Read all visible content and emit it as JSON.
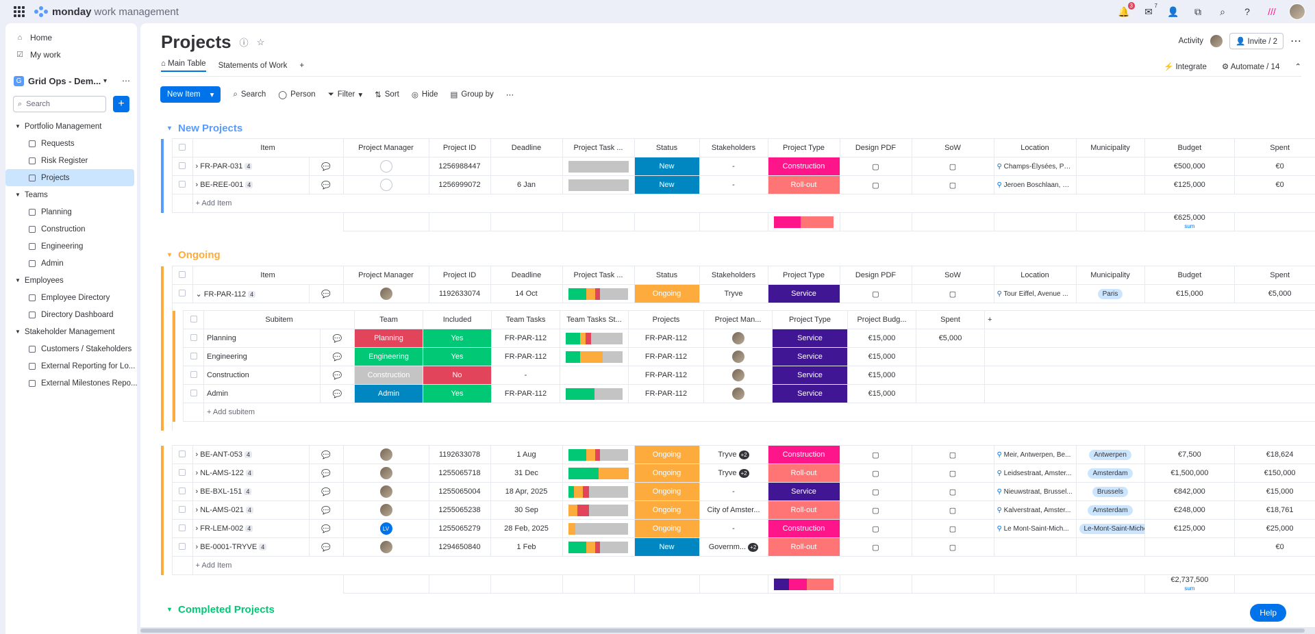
{
  "app": {
    "brand": "monday",
    "brand_rest": "work management",
    "notif_count": "3",
    "inbox_count": "7"
  },
  "sidebar": {
    "home": "Home",
    "mywork": "My work",
    "workspace": "Grid Ops - Dem...",
    "ws_letter": "G",
    "search": "Search",
    "folders": [
      {
        "label": "Portfolio Management",
        "boards": [
          "Requests",
          "Risk Register",
          "Projects"
        ]
      },
      {
        "label": "Teams",
        "boards": [
          "Planning",
          "Construction",
          "Engineering",
          "Admin"
        ]
      },
      {
        "label": "Employees",
        "boards": [
          "Employee Directory",
          "Directory Dashboard"
        ]
      },
      {
        "label": "Stakeholder Management",
        "boards": [
          "Customers / Stakeholders",
          "External Reporting for Lo...",
          "External Milestones Repo..."
        ]
      }
    ]
  },
  "board": {
    "title": "Projects",
    "tabs": [
      "Main Table",
      "Statements of Work",
      "+"
    ],
    "activity": "Activity",
    "invite": "Invite / 2",
    "integrate": "Integrate",
    "automate": "Automate / 14"
  },
  "toolbar": {
    "new_item": "New Item",
    "search": "Search",
    "person": "Person",
    "filter": "Filter",
    "sort": "Sort",
    "hide": "Hide",
    "group_by": "Group by"
  },
  "columns": [
    "Item",
    "Project Manager",
    "Project ID",
    "Deadline",
    "Project Task ...",
    "Status",
    "Stakeholders",
    "Project Type",
    "Design PDF",
    "SoW",
    "Location",
    "Municipality",
    "Budget",
    "Spent"
  ],
  "groups": {
    "new": {
      "title": "New Projects",
      "color": "#579bfc",
      "add": "+ Add Item",
      "sum": "€625,000",
      "sum_label": "sum",
      "rows": [
        {
          "item": "FR-PAR-031",
          "cnt": "4",
          "id": "1256988447",
          "deadline": "",
          "status": "New",
          "statusColor": "#0086c0",
          "stake": "-",
          "type": "Construction",
          "typeColor": "#ff158a",
          "loc": "Champs-Élysées, Pa...",
          "muni": "",
          "budget": "€500,000",
          "spent": "€0"
        },
        {
          "item": "BE-REE-001",
          "cnt": "4",
          "id": "1256999072",
          "deadline": "6 Jan",
          "status": "New",
          "statusColor": "#0086c0",
          "stake": "-",
          "type": "Roll-out",
          "typeColor": "#ff7575",
          "loc": "Jeroen Boschlaan, R...",
          "muni": "",
          "budget": "€125,000",
          "spent": "€0"
        }
      ]
    },
    "ongoing": {
      "title": "Ongoing",
      "color": "#fdab3d",
      "add": "+ Add Item",
      "sum": "€2,737,500",
      "sum_label": "sum",
      "first": {
        "item": "FR-PAR-112",
        "cnt": "4",
        "id": "1192633074",
        "deadline": "14 Oct",
        "status": "Ongoing",
        "stake": "Tryve",
        "type": "Service",
        "typeColor": "#401694",
        "loc": "Tour Eiffel, Avenue ...",
        "muni": "Paris",
        "budget": "€15,000",
        "spent": "€5,000"
      },
      "sub_columns": [
        "Subitem",
        "Team",
        "Included",
        "Team Tasks",
        "Team Tasks St...",
        "Projects",
        "Project Man...",
        "Project Type",
        "Project Budg...",
        "Spent"
      ],
      "subitems": [
        {
          "name": "Planning",
          "team": "Planning",
          "teamColor": "#e2445c",
          "inc": "Yes",
          "incColor": "#00c875",
          "tasks": "FR-PAR-112",
          "proj": "FR-PAR-112",
          "type": "Service",
          "budget": "€15,000",
          "spent": "€5,000"
        },
        {
          "name": "Engineering",
          "team": "Engineering",
          "teamColor": "#00c875",
          "inc": "Yes",
          "incColor": "#00c875",
          "tasks": "FR-PAR-112",
          "proj": "FR-PAR-112",
          "type": "Service",
          "budget": "€15,000",
          "spent": ""
        },
        {
          "name": "Construction",
          "team": "Construction",
          "teamColor": "#c4c4c4",
          "inc": "No",
          "incColor": "#e2445c",
          "tasks": "-",
          "proj": "FR-PAR-112",
          "type": "Service",
          "budget": "€15,000",
          "spent": ""
        },
        {
          "name": "Admin",
          "team": "Admin",
          "teamColor": "#0086c0",
          "inc": "Yes",
          "incColor": "#00c875",
          "tasks": "FR-PAR-112",
          "proj": "FR-PAR-112",
          "type": "Service",
          "budget": "€15,000",
          "spent": ""
        }
      ],
      "add_sub": "+ Add subitem",
      "rows": [
        {
          "item": "BE-ANT-053",
          "cnt": "4",
          "id": "1192633078",
          "deadline": "1 Aug",
          "status": "Ongoing",
          "statusColor": "#fdab3d",
          "stake": "Tryve",
          "stakeMore": "+2",
          "type": "Construction",
          "typeColor": "#ff158a",
          "loc": "Meir, Antwerpen, Be...",
          "muni": "Antwerpen",
          "budget": "€7,500",
          "spent": "€18,624"
        },
        {
          "item": "NL-AMS-122",
          "cnt": "4",
          "id": "1255065718",
          "deadline": "31 Dec",
          "status": "Ongoing",
          "statusColor": "#fdab3d",
          "stake": "Tryve",
          "stakeMore": "+2",
          "type": "Roll-out",
          "typeColor": "#ff7575",
          "loc": "Leidsestraat, Amster...",
          "muni": "Amsterdam",
          "budget": "€1,500,000",
          "spent": "€150,000"
        },
        {
          "item": "BE-BXL-151",
          "cnt": "4",
          "id": "1255065004",
          "deadline": "18 Apr, 2025",
          "status": "Ongoing",
          "statusColor": "#fdab3d",
          "stake": "-",
          "stakeMore": "",
          "type": "Service",
          "typeColor": "#401694",
          "loc": "Nieuwstraat, Brussel...",
          "muni": "Brussels",
          "budget": "€842,000",
          "spent": "€15,000"
        },
        {
          "item": "NL-AMS-021",
          "cnt": "4",
          "id": "1255065238",
          "deadline": "30 Sep",
          "status": "Ongoing",
          "statusColor": "#fdab3d",
          "stake": "City of Amster...",
          "stakeMore": "",
          "type": "Roll-out",
          "typeColor": "#ff7575",
          "loc": "Kalverstraat, Amster...",
          "muni": "Amsterdam",
          "budget": "€248,000",
          "spent": "€18,761"
        },
        {
          "item": "FR-LEM-002",
          "cnt": "4",
          "id": "1255065279",
          "deadline": "28 Feb, 2025",
          "status": "Ongoing",
          "statusColor": "#fdab3d",
          "stake": "-",
          "stakeMore": "",
          "type": "Construction",
          "typeColor": "#ff158a",
          "loc": "Le Mont-Saint-Mich...",
          "muni": "Le-Mont-Saint-Michel",
          "budget": "€125,000",
          "spent": "€25,000"
        },
        {
          "item": "BE-0001-TRYVE",
          "cnt": "4",
          "id": "1294650840",
          "deadline": "1 Feb",
          "status": "New",
          "statusColor": "#0086c0",
          "stake": "Governm...",
          "stakeMore": "+2",
          "type": "Roll-out",
          "typeColor": "#ff7575",
          "loc": "",
          "muni": "",
          "budget": "",
          "spent": "€0"
        }
      ]
    },
    "completed": {
      "title": "Completed Projects",
      "color": "#00c875"
    }
  },
  "help": "Help",
  "lv": "LV"
}
